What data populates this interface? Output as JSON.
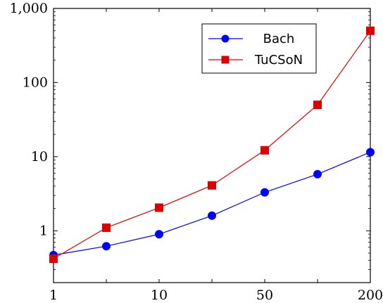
{
  "chart_data": {
    "type": "line",
    "yscale": "log",
    "ylim": [
      0.2,
      1000
    ],
    "x_categories": [
      "1",
      "",
      "10",
      "",
      "50",
      "",
      "200"
    ],
    "x_tick_labels": [
      "1",
      "10",
      "50",
      "200"
    ],
    "y_ticks": [
      1,
      10,
      100,
      1000
    ],
    "y_tick_labels": [
      "1",
      "10",
      "100",
      "1,000"
    ],
    "grid": false,
    "legend_position": "top-right",
    "series": [
      {
        "name": "Bach",
        "color": "#0000ff",
        "marker": "circle",
        "values": [
          0.47,
          0.62,
          0.9,
          1.6,
          3.3,
          5.8,
          11.5
        ]
      },
      {
        "name": "TuCSoN",
        "color": "#dd0000",
        "marker": "square",
        "values": [
          0.42,
          1.1,
          2.05,
          4.1,
          12.2,
          50,
          500
        ]
      }
    ]
  }
}
